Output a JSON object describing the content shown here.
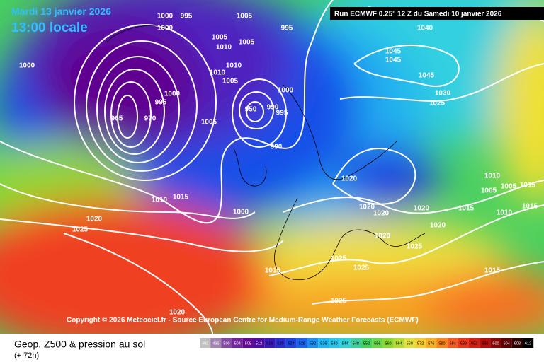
{
  "header": {
    "date": "Mardi 13 janvier 2026",
    "time": "13:00 locale",
    "run": "Run ECMWF 0.25° 12 Z du Samedi 10 janvier 2026"
  },
  "copyright": "Copyright © 2026 Meteociel.fr - Source European Centre for Medium-Range Weather Forecasts (ECMWF)",
  "footer": {
    "title": "Geop. Z500 & pression au sol",
    "lead": "(+ 72h)"
  },
  "legend": [
    492,
    496,
    500,
    504,
    508,
    512,
    516,
    520,
    524,
    528,
    532,
    536,
    540,
    544,
    548,
    552,
    556,
    560,
    564,
    568,
    572,
    576,
    580,
    584,
    588,
    592,
    596,
    600,
    604,
    608,
    612
  ],
  "isobar_labels": [
    1000,
    995,
    1000,
    1005,
    995,
    1005,
    1010,
    1005,
    1010,
    1010,
    1005,
    1000,
    995,
    970,
    965,
    1005,
    950,
    990,
    995,
    1000,
    990,
    1040,
    1045,
    1045,
    1045,
    1030,
    1025,
    1020,
    1010,
    1015,
    1000,
    1020,
    1020,
    1020,
    1015,
    1020,
    1020,
    1025,
    1025,
    1025,
    1015,
    1015,
    1025,
    1020,
    1020,
    1025,
    1010,
    1005,
    1005,
    1015,
    1015,
    1010,
    1000
  ]
}
